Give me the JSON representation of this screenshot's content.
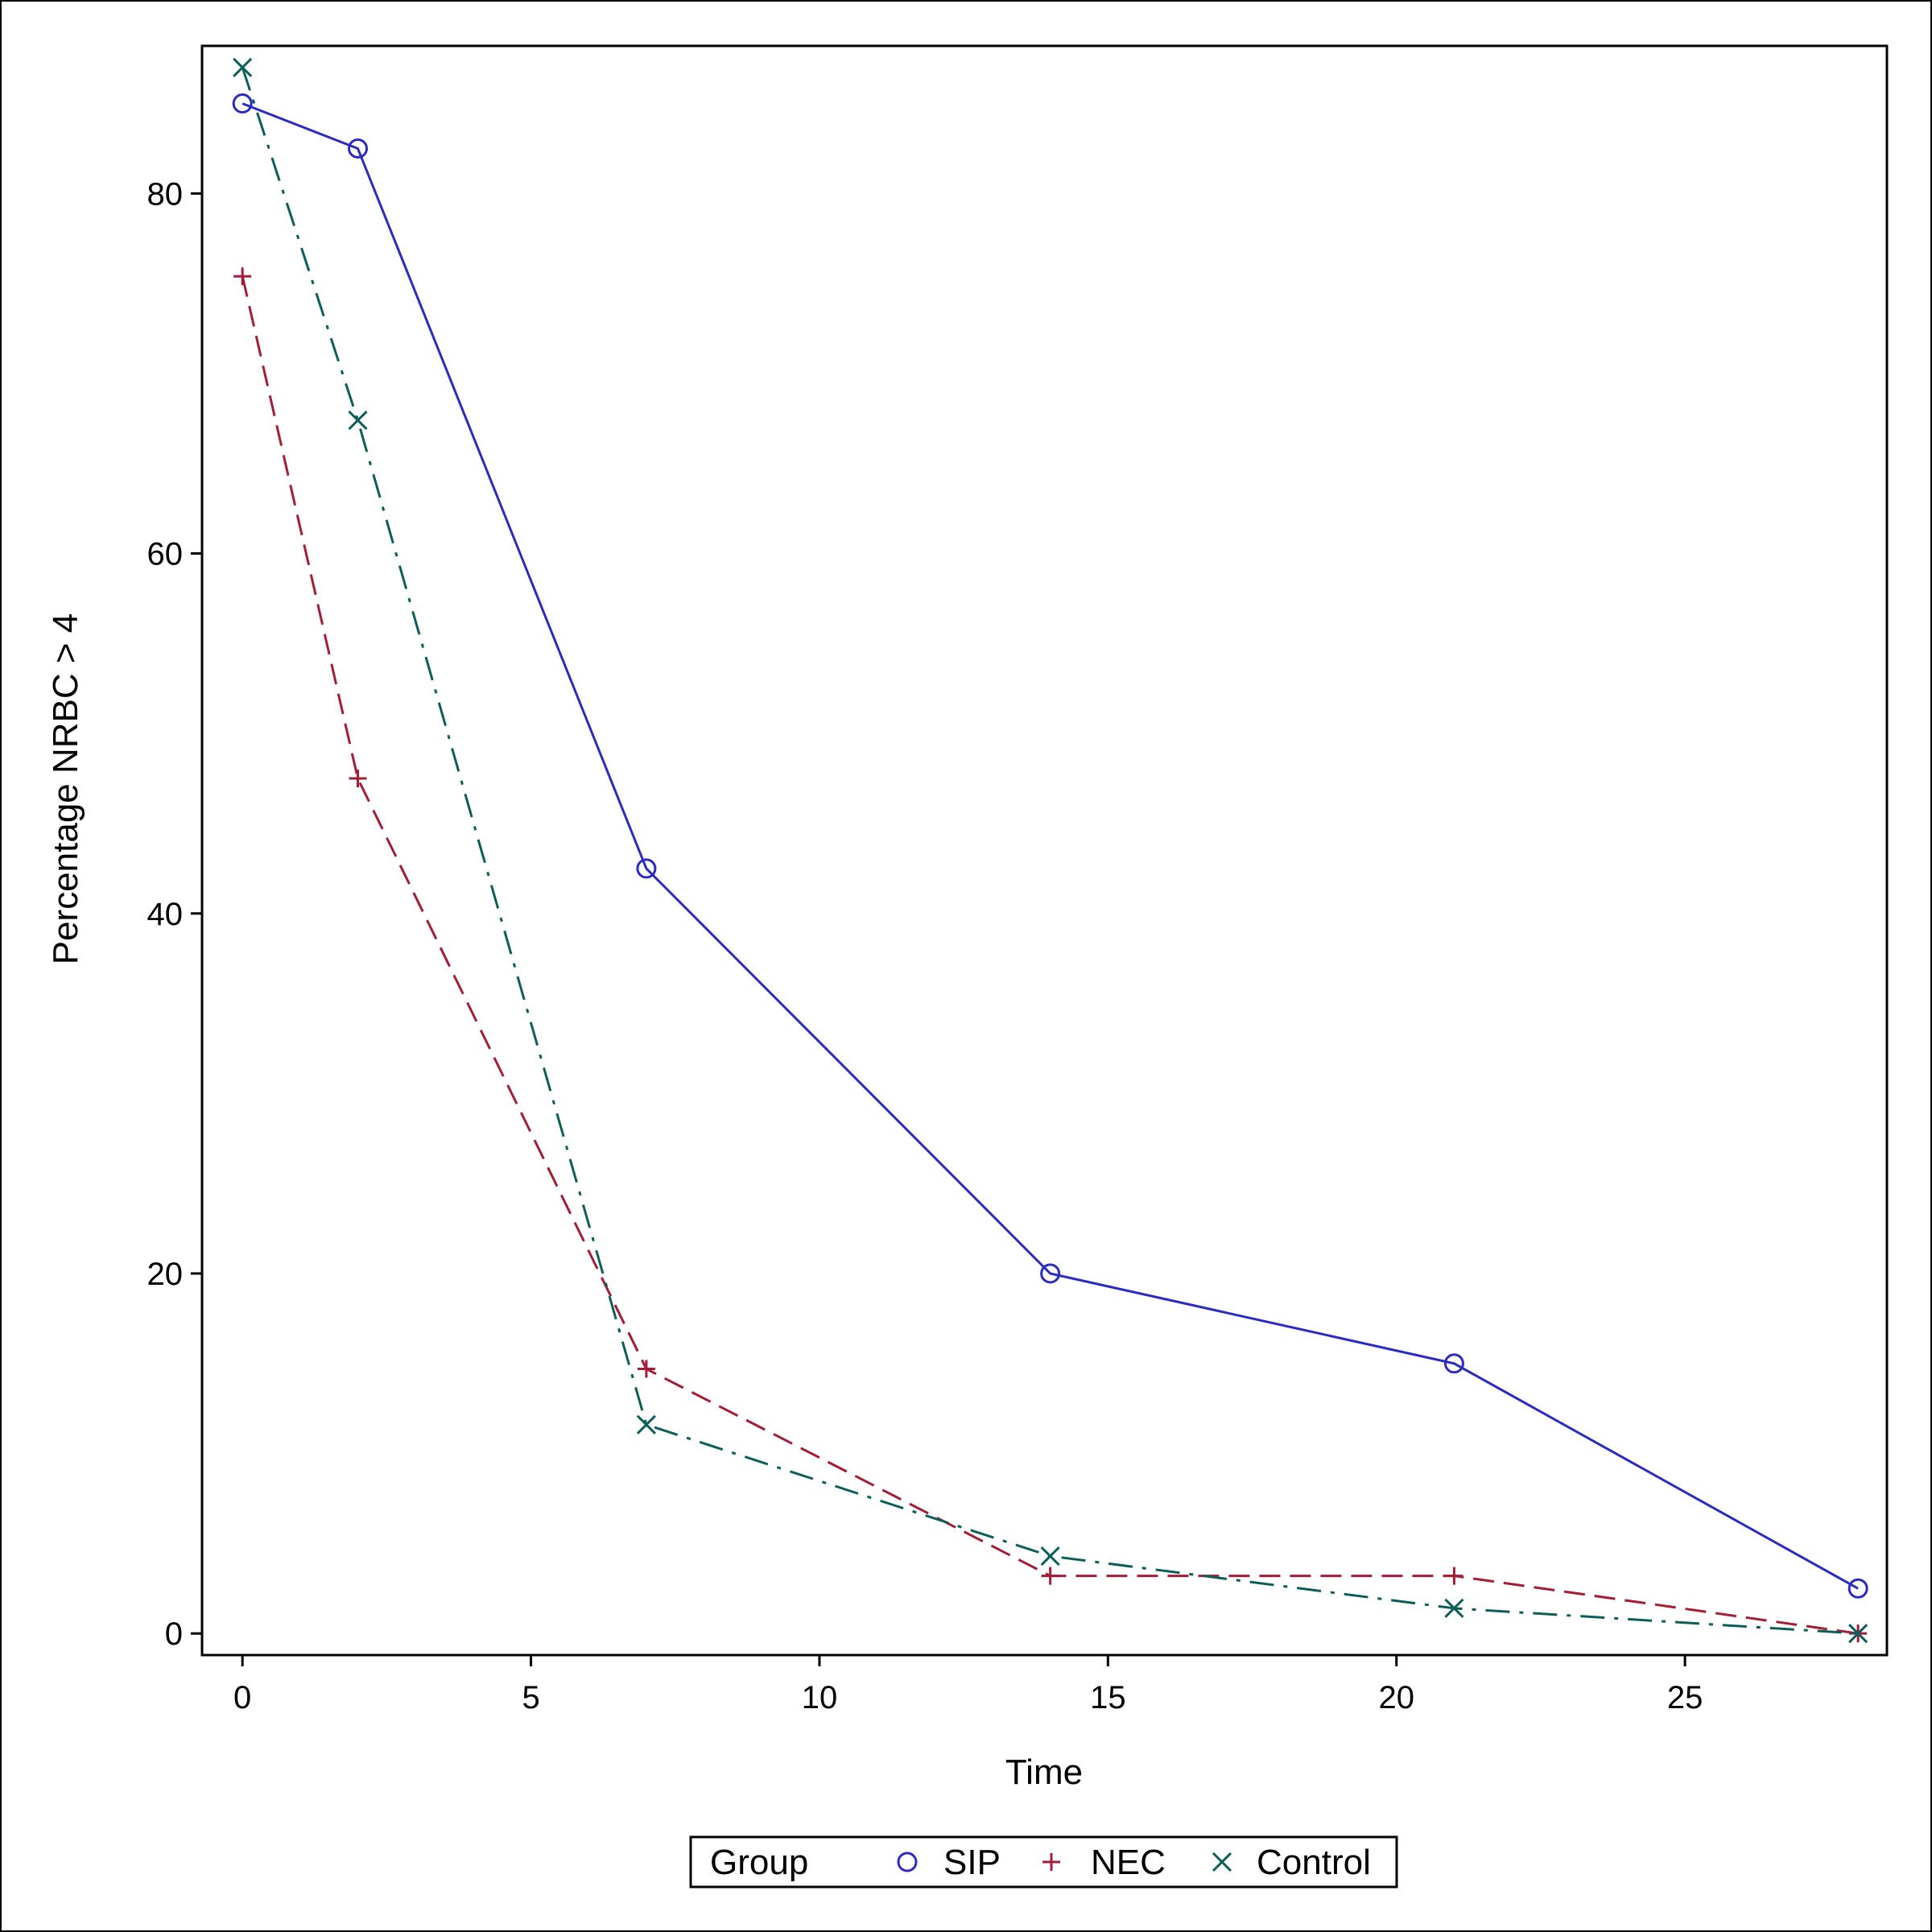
{
  "chart_data": {
    "type": "line",
    "xlabel": "Time",
    "ylabel": "Percentage NRBC > 4",
    "xlim": [
      -0.7,
      28.5
    ],
    "ylim": [
      -1.2,
      88.2
    ],
    "xticks": [
      0,
      5,
      10,
      15,
      20,
      25
    ],
    "yticks": [
      0,
      20,
      40,
      60,
      80
    ],
    "grid": false,
    "legend": {
      "title": "Group",
      "position": "bottom-center"
    },
    "series": [
      {
        "name": "SIP",
        "color": "#2b2bc4",
        "marker": "circle",
        "line_style": "solid",
        "x": [
          0,
          2,
          7,
          14,
          21,
          28
        ],
        "y": [
          85,
          82.5,
          42.5,
          20,
          15,
          2.5
        ]
      },
      {
        "name": "NEC",
        "color": "#a31d35",
        "marker": "plus",
        "line_style": "dashed",
        "x": [
          0,
          2,
          7,
          14,
          21,
          28
        ],
        "y": [
          75.4,
          47.5,
          14.7,
          3.2,
          3.2,
          0
        ]
      },
      {
        "name": "Control",
        "color": "#0d5e58",
        "marker": "x",
        "line_style": "dash-dot",
        "x": [
          0,
          2,
          7,
          14,
          21,
          28
        ],
        "y": [
          87,
          67.4,
          11.6,
          4.3,
          1.4,
          0
        ]
      }
    ]
  }
}
